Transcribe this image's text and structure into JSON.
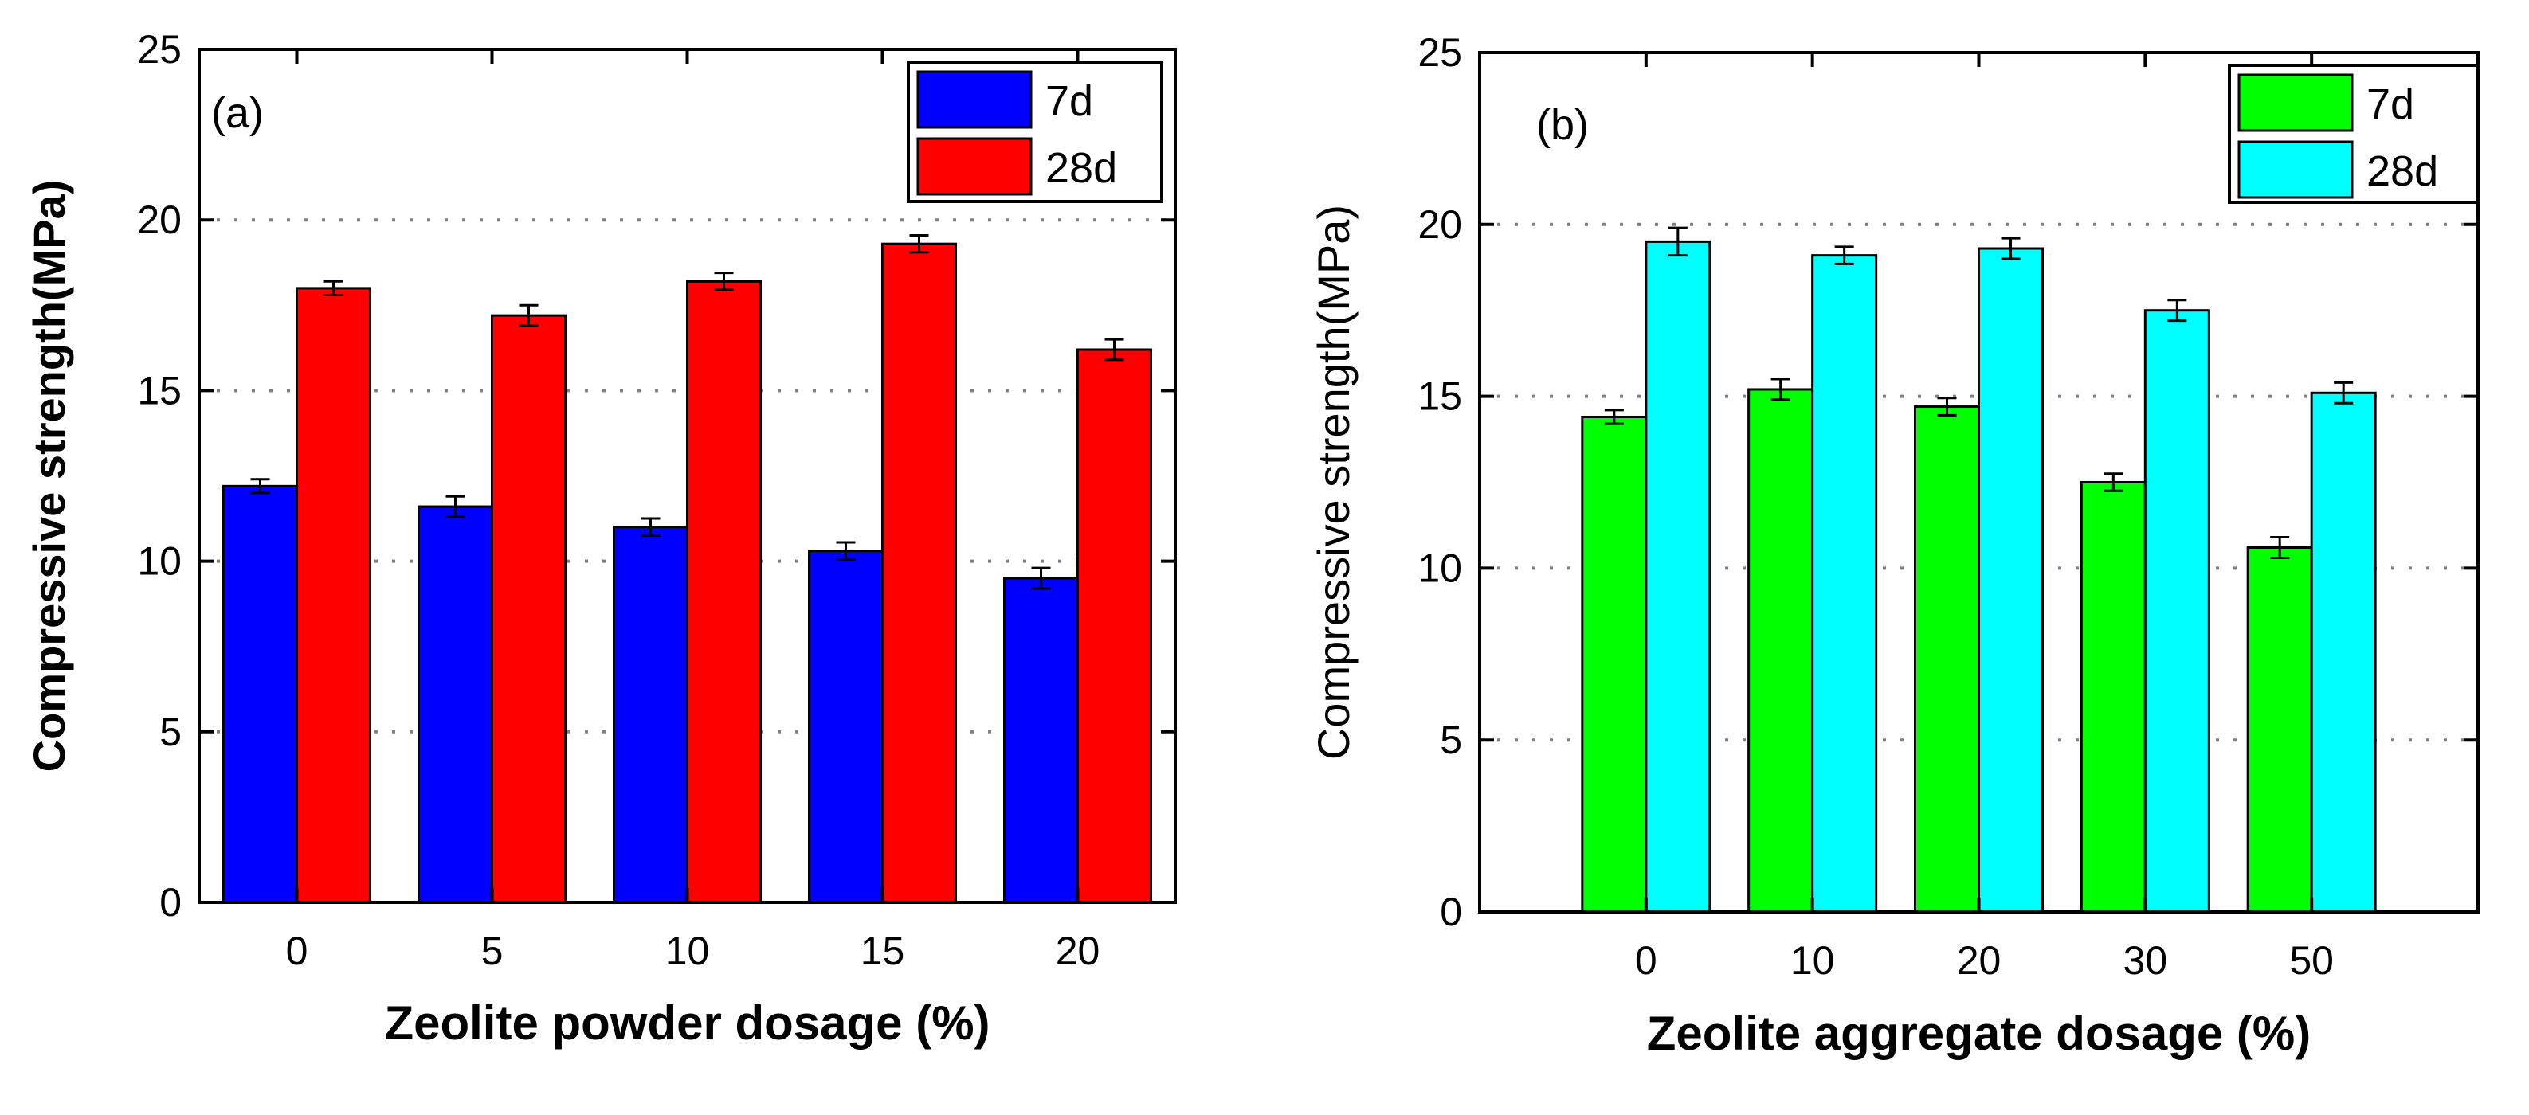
{
  "chart_data": [
    {
      "type": "bar",
      "panel_label": "(a)",
      "categories": [
        "0",
        "5",
        "10",
        "15",
        "20"
      ],
      "series": [
        {
          "name": "7d",
          "color": "#0000ff",
          "values": [
            12.2,
            11.6,
            11.0,
            10.3,
            9.5
          ],
          "errors": [
            0.2,
            0.3,
            0.25,
            0.25,
            0.3
          ]
        },
        {
          "name": "28d",
          "color": "#ff0000",
          "values": [
            18.0,
            17.2,
            18.2,
            19.3,
            16.2
          ],
          "errors": [
            0.2,
            0.3,
            0.25,
            0.25,
            0.3
          ]
        }
      ],
      "xlabel": "Zeolite powder dosage (%)",
      "ylabel": "Compressive strength(MPa)",
      "ylim": [
        0,
        25
      ],
      "yticks": [
        "0",
        "5",
        "10",
        "15",
        "20",
        "25"
      ],
      "grid_values": [
        5,
        10,
        15,
        20
      ],
      "legend": "top-right"
    },
    {
      "type": "bar",
      "panel_label": "(b)",
      "categories": [
        "0",
        "10",
        "20",
        "30",
        "50"
      ],
      "series": [
        {
          "name": "7d",
          "color": "#00ff00",
          "values": [
            14.4,
            15.2,
            14.7,
            12.5,
            10.6
          ],
          "errors": [
            0.2,
            0.3,
            0.25,
            0.25,
            0.3
          ]
        },
        {
          "name": "28d",
          "color": "#00ffff",
          "values": [
            19.5,
            19.1,
            19.3,
            17.5,
            15.1
          ],
          "errors": [
            0.4,
            0.25,
            0.3,
            0.3,
            0.3
          ]
        }
      ],
      "xlabel": "Zeolite aggregate dosage (%)",
      "ylabel": "Compressive strength(MPa)",
      "ylim": [
        0,
        25
      ],
      "yticks": [
        "0",
        "5",
        "10",
        "15",
        "20",
        "25"
      ],
      "grid_values": [
        5,
        10,
        15,
        20
      ],
      "legend": "top-right"
    }
  ]
}
